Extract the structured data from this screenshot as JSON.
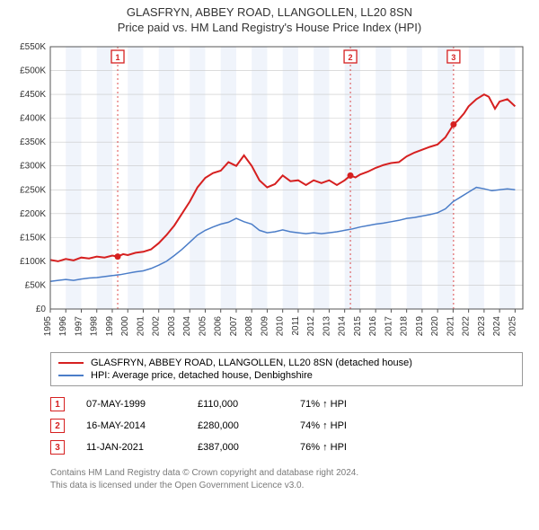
{
  "title_line1": "GLASFRYN, ABBEY ROAD, LLANGOLLEN, LL20 8SN",
  "title_line2": "Price paid vs. HM Land Registry's House Price Index (HPI)",
  "chart": {
    "background": "#ffffff",
    "band_fill": "#f0f4fb",
    "grid_color": "#c8c8c8",
    "axis_color": "#555555",
    "tick_font_size": 10,
    "label_font_size": 10,
    "bands": [
      [
        1996,
        1997
      ],
      [
        1998,
        1999
      ],
      [
        2000,
        2001
      ],
      [
        2002,
        2003
      ],
      [
        2004,
        2005
      ],
      [
        2006,
        2007
      ],
      [
        2008,
        2009
      ],
      [
        2010,
        2011
      ],
      [
        2012,
        2013
      ],
      [
        2014,
        2015
      ],
      [
        2016,
        2017
      ],
      [
        2018,
        2019
      ],
      [
        2020,
        2021
      ],
      [
        2022,
        2023
      ],
      [
        2024,
        2025
      ]
    ],
    "x": {
      "min": 1995,
      "max": 2025.5,
      "ticks": [
        1995,
        1996,
        1997,
        1998,
        1999,
        2000,
        2001,
        2002,
        2003,
        2004,
        2005,
        2006,
        2007,
        2008,
        2009,
        2010,
        2011,
        2012,
        2013,
        2014,
        2015,
        2016,
        2017,
        2018,
        2019,
        2020,
        2021,
        2022,
        2023,
        2024,
        2025
      ]
    },
    "y": {
      "min": 0,
      "max": 550,
      "ticks": [
        0,
        50,
        100,
        150,
        200,
        250,
        300,
        350,
        400,
        450,
        500,
        550
      ],
      "labels": [
        "£0",
        "£50K",
        "£100K",
        "£150K",
        "£200K",
        "£250K",
        "£300K",
        "£350K",
        "£400K",
        "£450K",
        "£500K",
        "£550K"
      ]
    },
    "series": [
      {
        "name": "price_paid",
        "label": "GLASFRYN, ABBEY ROAD, LLANGOLLEN, LL20 8SN (detached house)",
        "color": "#d62020",
        "width": 2,
        "data": [
          [
            1995,
            103
          ],
          [
            1995.5,
            100
          ],
          [
            1996,
            105
          ],
          [
            1996.5,
            102
          ],
          [
            1997,
            108
          ],
          [
            1997.5,
            106
          ],
          [
            1998,
            110
          ],
          [
            1998.5,
            108
          ],
          [
            1999,
            112
          ],
          [
            1999.35,
            110
          ],
          [
            1999.7,
            115
          ],
          [
            2000,
            113
          ],
          [
            2000.5,
            118
          ],
          [
            2001,
            120
          ],
          [
            2001.5,
            125
          ],
          [
            2002,
            138
          ],
          [
            2002.5,
            155
          ],
          [
            2003,
            175
          ],
          [
            2003.5,
            200
          ],
          [
            2004,
            225
          ],
          [
            2004.5,
            255
          ],
          [
            2005,
            275
          ],
          [
            2005.5,
            285
          ],
          [
            2006,
            290
          ],
          [
            2006.5,
            308
          ],
          [
            2007,
            300
          ],
          [
            2007.5,
            322
          ],
          [
            2008,
            300
          ],
          [
            2008.5,
            270
          ],
          [
            2009,
            255
          ],
          [
            2009.5,
            262
          ],
          [
            2010,
            280
          ],
          [
            2010.5,
            268
          ],
          [
            2011,
            270
          ],
          [
            2011.5,
            260
          ],
          [
            2012,
            270
          ],
          [
            2012.5,
            264
          ],
          [
            2013,
            270
          ],
          [
            2013.5,
            260
          ],
          [
            2014,
            270
          ],
          [
            2014.37,
            280
          ],
          [
            2014.7,
            276
          ],
          [
            2015,
            282
          ],
          [
            2015.5,
            288
          ],
          [
            2016,
            296
          ],
          [
            2016.5,
            302
          ],
          [
            2017,
            306
          ],
          [
            2017.5,
            308
          ],
          [
            2018,
            320
          ],
          [
            2018.5,
            328
          ],
          [
            2019,
            334
          ],
          [
            2019.5,
            340
          ],
          [
            2020,
            345
          ],
          [
            2020.5,
            360
          ],
          [
            2021.03,
            387
          ],
          [
            2021.3,
            395
          ],
          [
            2021.7,
            410
          ],
          [
            2022,
            425
          ],
          [
            2022.5,
            440
          ],
          [
            2023,
            450
          ],
          [
            2023.3,
            445
          ],
          [
            2023.7,
            420
          ],
          [
            2024,
            435
          ],
          [
            2024.5,
            440
          ],
          [
            2025,
            425
          ]
        ]
      },
      {
        "name": "hpi",
        "label": "HPI: Average price, detached house, Denbighshire",
        "color": "#4b7dc8",
        "width": 1.5,
        "data": [
          [
            1995,
            58
          ],
          [
            1995.5,
            60
          ],
          [
            1996,
            62
          ],
          [
            1996.5,
            60
          ],
          [
            1997,
            63
          ],
          [
            1997.5,
            65
          ],
          [
            1998,
            66
          ],
          [
            1998.5,
            68
          ],
          [
            1999,
            70
          ],
          [
            1999.5,
            72
          ],
          [
            2000,
            75
          ],
          [
            2000.5,
            78
          ],
          [
            2001,
            80
          ],
          [
            2001.5,
            85
          ],
          [
            2002,
            92
          ],
          [
            2002.5,
            100
          ],
          [
            2003,
            112
          ],
          [
            2003.5,
            125
          ],
          [
            2004,
            140
          ],
          [
            2004.5,
            155
          ],
          [
            2005,
            165
          ],
          [
            2005.5,
            172
          ],
          [
            2006,
            178
          ],
          [
            2006.5,
            182
          ],
          [
            2007,
            190
          ],
          [
            2007.5,
            183
          ],
          [
            2008,
            178
          ],
          [
            2008.5,
            165
          ],
          [
            2009,
            160
          ],
          [
            2009.5,
            162
          ],
          [
            2010,
            166
          ],
          [
            2010.5,
            162
          ],
          [
            2011,
            160
          ],
          [
            2011.5,
            158
          ],
          [
            2012,
            160
          ],
          [
            2012.5,
            158
          ],
          [
            2013,
            160
          ],
          [
            2013.5,
            162
          ],
          [
            2014,
            165
          ],
          [
            2014.5,
            168
          ],
          [
            2015,
            172
          ],
          [
            2015.5,
            175
          ],
          [
            2016,
            178
          ],
          [
            2016.5,
            180
          ],
          [
            2017,
            183
          ],
          [
            2017.5,
            186
          ],
          [
            2018,
            190
          ],
          [
            2018.5,
            192
          ],
          [
            2019,
            195
          ],
          [
            2019.5,
            198
          ],
          [
            2020,
            202
          ],
          [
            2020.5,
            210
          ],
          [
            2021,
            225
          ],
          [
            2021.5,
            235
          ],
          [
            2022,
            245
          ],
          [
            2022.5,
            255
          ],
          [
            2023,
            252
          ],
          [
            2023.5,
            248
          ],
          [
            2024,
            250
          ],
          [
            2024.5,
            252
          ],
          [
            2025,
            250
          ]
        ]
      }
    ],
    "markers": [
      {
        "n": "1",
        "x": 1999.35,
        "y": 110,
        "color": "#d62020",
        "line_color": "#d62020"
      },
      {
        "n": "2",
        "x": 2014.37,
        "y": 280,
        "color": "#d62020",
        "line_color": "#d62020"
      },
      {
        "n": "3",
        "x": 2021.03,
        "y": 387,
        "color": "#d62020",
        "line_color": "#d62020"
      }
    ]
  },
  "legend": [
    {
      "color": "#d62020",
      "label": "GLASFRYN, ABBEY ROAD, LLANGOLLEN, LL20 8SN (detached house)"
    },
    {
      "color": "#4b7dc8",
      "label": "HPI: Average price, detached house, Denbighshire"
    }
  ],
  "sales": [
    {
      "n": "1",
      "color": "#d62020",
      "date": "07-MAY-1999",
      "price": "£110,000",
      "pct": "71% ↑ HPI"
    },
    {
      "n": "2",
      "color": "#d62020",
      "date": "16-MAY-2014",
      "price": "£280,000",
      "pct": "74% ↑ HPI"
    },
    {
      "n": "3",
      "color": "#d62020",
      "date": "11-JAN-2021",
      "price": "£387,000",
      "pct": "76% ↑ HPI"
    }
  ],
  "footer_line1": "Contains HM Land Registry data © Crown copyright and database right 2024.",
  "footer_line2": "This data is licensed under the Open Government Licence v3.0."
}
